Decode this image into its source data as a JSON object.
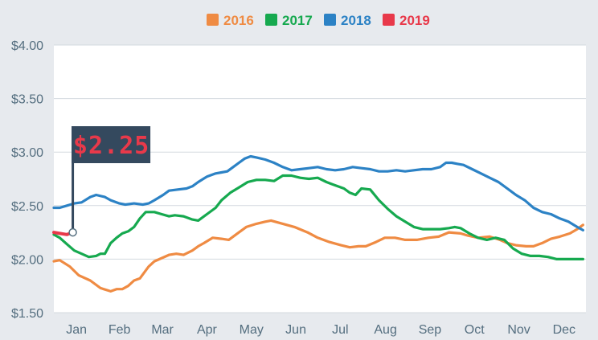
{
  "chart_data": {
    "type": "line",
    "xlabel": "",
    "ylabel": "",
    "ylim": [
      1.5,
      4.0
    ],
    "xlim": [
      1,
      366
    ],
    "yticks": [
      1.5,
      2.0,
      2.5,
      3.0,
      3.5,
      4.0
    ],
    "ytick_labels": [
      "$1.50",
      "$2.00",
      "$2.50",
      "$3.00",
      "$3.50",
      "$4.00"
    ],
    "month_labels": [
      "Jan",
      "Feb",
      "Mar",
      "Apr",
      "May",
      "Jun",
      "Jul",
      "Aug",
      "Sep",
      "Oct",
      "Nov",
      "Dec"
    ],
    "month_starts": [
      1,
      32,
      60,
      91,
      121,
      152,
      182,
      213,
      244,
      274,
      305,
      335
    ],
    "grid": "horizontal",
    "legend": "top-center",
    "series": [
      {
        "name": "2016",
        "color": "#ef8b43",
        "x": [
          1,
          5,
          12,
          18,
          26,
          33,
          40,
          44,
          48,
          52,
          56,
          60,
          66,
          70,
          75,
          80,
          85,
          90,
          96,
          100,
          104,
          110,
          116,
          121,
          128,
          133,
          140,
          146,
          150,
          158,
          166,
          175,
          182,
          190,
          198,
          204,
          210,
          215,
          222,
          228,
          235,
          242,
          250,
          258,
          265,
          272,
          280,
          285,
          292,
          300,
          307,
          312,
          318,
          325,
          330,
          336,
          342,
          348,
          355,
          360,
          364
        ],
        "y": [
          1.98,
          1.99,
          1.93,
          1.85,
          1.8,
          1.73,
          1.7,
          1.72,
          1.72,
          1.75,
          1.8,
          1.82,
          1.93,
          1.98,
          2.01,
          2.04,
          2.05,
          2.04,
          2.08,
          2.12,
          2.15,
          2.2,
          2.19,
          2.18,
          2.25,
          2.3,
          2.33,
          2.35,
          2.36,
          2.33,
          2.3,
          2.25,
          2.2,
          2.16,
          2.13,
          2.11,
          2.12,
          2.12,
          2.16,
          2.2,
          2.2,
          2.18,
          2.18,
          2.2,
          2.21,
          2.25,
          2.24,
          2.22,
          2.2,
          2.21,
          2.18,
          2.15,
          2.13,
          2.12,
          2.12,
          2.15,
          2.19,
          2.21,
          2.24,
          2.28,
          2.32
        ]
      },
      {
        "name": "2017",
        "color": "#16a94f",
        "x": [
          1,
          5,
          10,
          15,
          20,
          25,
          30,
          33,
          36,
          40,
          44,
          48,
          52,
          56,
          60,
          64,
          70,
          75,
          80,
          84,
          90,
          96,
          100,
          106,
          112,
          116,
          122,
          128,
          134,
          140,
          146,
          152,
          158,
          164,
          170,
          176,
          182,
          188,
          192,
          200,
          204,
          208,
          212,
          218,
          224,
          230,
          236,
          242,
          248,
          254,
          260,
          266,
          272,
          276,
          280,
          286,
          292,
          298,
          304,
          310,
          316,
          322,
          328,
          334,
          340,
          346,
          352,
          358,
          364
        ],
        "y": [
          2.23,
          2.2,
          2.14,
          2.08,
          2.05,
          2.02,
          2.03,
          2.05,
          2.05,
          2.15,
          2.2,
          2.24,
          2.26,
          2.3,
          2.38,
          2.44,
          2.44,
          2.42,
          2.4,
          2.41,
          2.4,
          2.37,
          2.36,
          2.42,
          2.48,
          2.55,
          2.62,
          2.67,
          2.72,
          2.74,
          2.74,
          2.73,
          2.78,
          2.78,
          2.76,
          2.75,
          2.76,
          2.72,
          2.7,
          2.66,
          2.62,
          2.6,
          2.66,
          2.65,
          2.55,
          2.47,
          2.4,
          2.35,
          2.3,
          2.28,
          2.28,
          2.28,
          2.29,
          2.3,
          2.29,
          2.24,
          2.2,
          2.18,
          2.2,
          2.18,
          2.1,
          2.05,
          2.03,
          2.03,
          2.02,
          2.0,
          2.0,
          2.0,
          2.0
        ]
      },
      {
        "name": "2018",
        "color": "#2c82c5",
        "x": [
          1,
          5,
          10,
          15,
          20,
          26,
          30,
          36,
          40,
          46,
          50,
          56,
          62,
          66,
          70,
          76,
          80,
          86,
          92,
          96,
          100,
          106,
          112,
          116,
          120,
          124,
          128,
          132,
          136,
          140,
          146,
          152,
          158,
          164,
          170,
          176,
          182,
          188,
          194,
          200,
          206,
          212,
          218,
          224,
          230,
          236,
          242,
          248,
          254,
          260,
          266,
          270,
          274,
          278,
          282,
          288,
          294,
          300,
          306,
          312,
          318,
          324,
          330,
          336,
          342,
          348,
          354,
          360,
          364
        ],
        "y": [
          2.48,
          2.48,
          2.5,
          2.52,
          2.53,
          2.58,
          2.6,
          2.58,
          2.55,
          2.52,
          2.51,
          2.52,
          2.51,
          2.52,
          2.55,
          2.6,
          2.64,
          2.65,
          2.66,
          2.68,
          2.72,
          2.77,
          2.8,
          2.81,
          2.82,
          2.86,
          2.9,
          2.94,
          2.96,
          2.95,
          2.93,
          2.9,
          2.86,
          2.83,
          2.84,
          2.85,
          2.86,
          2.84,
          2.83,
          2.84,
          2.86,
          2.85,
          2.84,
          2.82,
          2.82,
          2.83,
          2.82,
          2.83,
          2.84,
          2.84,
          2.86,
          2.9,
          2.9,
          2.89,
          2.88,
          2.84,
          2.8,
          2.76,
          2.72,
          2.66,
          2.6,
          2.55,
          2.48,
          2.44,
          2.42,
          2.38,
          2.35,
          2.3,
          2.27
        ]
      },
      {
        "name": "2019",
        "color": "#e8394a",
        "x": [
          1,
          5,
          10,
          14
        ],
        "y": [
          2.25,
          2.24,
          2.23,
          2.25
        ]
      }
    ],
    "annotation": {
      "text": "$2.25",
      "x": 14,
      "y": 2.25
    }
  }
}
